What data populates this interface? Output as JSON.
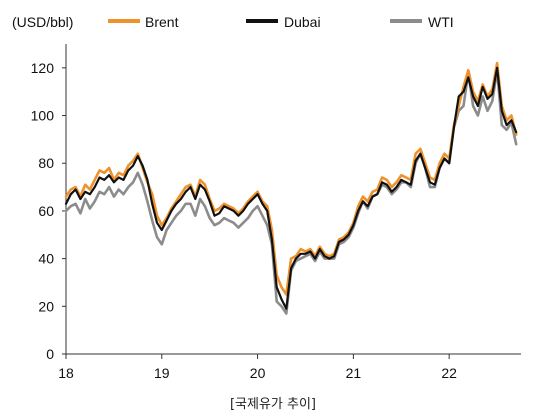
{
  "chart_data": {
    "type": "line",
    "unit_label": "(USD/bbl)",
    "caption": "[국제유가 추이]",
    "ylim": [
      0,
      130
    ],
    "yticks": [
      0,
      20,
      40,
      60,
      80,
      100,
      120
    ],
    "xlim": [
      18.0,
      22.75
    ],
    "xticks": [
      18,
      19,
      20,
      21,
      22
    ],
    "xtick_labels": [
      "18",
      "19",
      "20",
      "21",
      "22"
    ],
    "grid": false,
    "legend_position": "top",
    "series": [
      {
        "name": "Brent",
        "color": "#f0922b",
        "x": [
          18.0,
          18.05,
          18.1,
          18.15,
          18.2,
          18.25,
          18.3,
          18.35,
          18.4,
          18.45,
          18.5,
          18.55,
          18.6,
          18.65,
          18.7,
          18.75,
          18.8,
          18.85,
          18.9,
          18.95,
          19.0,
          19.05,
          19.1,
          19.15,
          19.2,
          19.25,
          19.3,
          19.35,
          19.4,
          19.45,
          19.5,
          19.55,
          19.6,
          19.65,
          19.7,
          19.75,
          19.8,
          19.85,
          19.9,
          19.95,
          20.0,
          20.05,
          20.1,
          20.15,
          20.2,
          20.25,
          20.3,
          20.35,
          20.4,
          20.45,
          20.5,
          20.55,
          20.6,
          20.65,
          20.7,
          20.75,
          20.8,
          20.85,
          20.9,
          20.95,
          21.0,
          21.05,
          21.1,
          21.15,
          21.2,
          21.25,
          21.3,
          21.35,
          21.4,
          21.45,
          21.5,
          21.55,
          21.6,
          21.65,
          21.7,
          21.75,
          21.8,
          21.85,
          21.9,
          21.95,
          22.0,
          22.05,
          22.1,
          22.15,
          22.2,
          22.25,
          22.3,
          22.35,
          22.4,
          22.45,
          22.5,
          22.55,
          22.6,
          22.65,
          22.7
        ],
        "values": [
          66,
          69,
          70,
          66,
          71,
          69,
          73,
          77,
          76,
          78,
          73,
          76,
          75,
          79,
          81,
          84,
          78,
          72,
          67,
          58,
          54,
          57,
          61,
          64,
          67,
          70,
          71,
          66,
          73,
          71,
          65,
          60,
          61,
          63,
          62,
          61,
          59,
          61,
          64,
          66,
          68,
          64,
          62,
          52,
          33,
          28,
          25,
          40,
          41,
          44,
          43,
          44,
          41,
          45,
          42,
          41,
          42,
          48,
          49,
          51,
          55,
          62,
          66,
          64,
          68,
          69,
          74,
          73,
          70,
          72,
          75,
          74,
          73,
          84,
          86,
          80,
          74,
          73,
          80,
          84,
          82,
          96,
          104,
          112,
          119,
          110,
          106,
          113,
          108,
          111,
          122,
          104,
          98,
          100,
          92
        ]
      },
      {
        "name": "Dubai",
        "color": "#111111",
        "x": [
          18.0,
          18.05,
          18.1,
          18.15,
          18.2,
          18.25,
          18.3,
          18.35,
          18.4,
          18.45,
          18.5,
          18.55,
          18.6,
          18.65,
          18.7,
          18.75,
          18.8,
          18.85,
          18.9,
          18.95,
          19.0,
          19.05,
          19.1,
          19.15,
          19.2,
          19.25,
          19.3,
          19.35,
          19.4,
          19.45,
          19.5,
          19.55,
          19.6,
          19.65,
          19.7,
          19.75,
          19.8,
          19.85,
          19.9,
          19.95,
          20.0,
          20.05,
          20.1,
          20.15,
          20.2,
          20.25,
          20.3,
          20.35,
          20.4,
          20.45,
          20.5,
          20.55,
          20.6,
          20.65,
          20.7,
          20.75,
          20.8,
          20.85,
          20.9,
          20.95,
          21.0,
          21.05,
          21.1,
          21.15,
          21.2,
          21.25,
          21.3,
          21.35,
          21.4,
          21.45,
          21.5,
          21.55,
          21.6,
          21.65,
          21.7,
          21.75,
          21.8,
          21.85,
          21.9,
          21.95,
          22.0,
          22.05,
          22.1,
          22.15,
          22.2,
          22.25,
          22.3,
          22.35,
          22.4,
          22.45,
          22.5,
          22.55,
          22.6,
          22.65,
          22.7
        ],
        "values": [
          63,
          67,
          69,
          65,
          68,
          67,
          70,
          74,
          73,
          75,
          72,
          74,
          73,
          77,
          79,
          83,
          79,
          73,
          63,
          55,
          52,
          56,
          60,
          63,
          65,
          68,
          70,
          65,
          71,
          69,
          64,
          58,
          59,
          62,
          61,
          60,
          58,
          60,
          63,
          65,
          67,
          63,
          60,
          48,
          28,
          23,
          19,
          36,
          40,
          42,
          42,
          43,
          40,
          44,
          41,
          40,
          41,
          47,
          48,
          50,
          54,
          60,
          64,
          62,
          66,
          67,
          72,
          71,
          68,
          70,
          73,
          72,
          71,
          81,
          84,
          78,
          72,
          71,
          78,
          82,
          80,
          95,
          108,
          110,
          116,
          108,
          104,
          112,
          107,
          109,
          120,
          102,
          96,
          98,
          93
        ]
      },
      {
        "name": "WTI",
        "color": "#8c8c8c",
        "x": [
          18.0,
          18.05,
          18.1,
          18.15,
          18.2,
          18.25,
          18.3,
          18.35,
          18.4,
          18.45,
          18.5,
          18.55,
          18.6,
          18.65,
          18.7,
          18.75,
          18.8,
          18.85,
          18.9,
          18.95,
          19.0,
          19.05,
          19.1,
          19.15,
          19.2,
          19.25,
          19.3,
          19.35,
          19.4,
          19.45,
          19.5,
          19.55,
          19.6,
          19.65,
          19.7,
          19.75,
          19.8,
          19.85,
          19.9,
          19.95,
          20.0,
          20.05,
          20.1,
          20.15,
          20.2,
          20.25,
          20.3,
          20.35,
          20.4,
          20.45,
          20.5,
          20.55,
          20.6,
          20.65,
          20.7,
          20.75,
          20.8,
          20.85,
          20.9,
          20.95,
          21.0,
          21.05,
          21.1,
          21.15,
          21.2,
          21.25,
          21.3,
          21.35,
          21.4,
          21.45,
          21.5,
          21.55,
          21.6,
          21.65,
          21.7,
          21.75,
          21.8,
          21.85,
          21.9,
          21.95,
          22.0,
          22.05,
          22.1,
          22.15,
          22.2,
          22.25,
          22.3,
          22.35,
          22.4,
          22.45,
          22.5,
          22.55,
          22.6,
          22.65,
          22.7
        ],
        "values": [
          60,
          62,
          63,
          59,
          65,
          61,
          64,
          68,
          67,
          70,
          66,
          69,
          67,
          70,
          72,
          76,
          71,
          64,
          56,
          49,
          46,
          52,
          55,
          58,
          60,
          63,
          63,
          58,
          65,
          62,
          57,
          54,
          55,
          57,
          56,
          55,
          53,
          55,
          57,
          60,
          62,
          58,
          54,
          46,
          22,
          20,
          17,
          35,
          39,
          40,
          41,
          42,
          39,
          43,
          40,
          40,
          40,
          46,
          47,
          49,
          53,
          59,
          64,
          61,
          66,
          67,
          71,
          70,
          67,
          69,
          72,
          72,
          70,
          80,
          84,
          78,
          70,
          70,
          78,
          82,
          80,
          95,
          102,
          104,
          118,
          104,
          100,
          108,
          102,
          106,
          119,
          96,
          94,
          97,
          88
        ]
      }
    ]
  }
}
